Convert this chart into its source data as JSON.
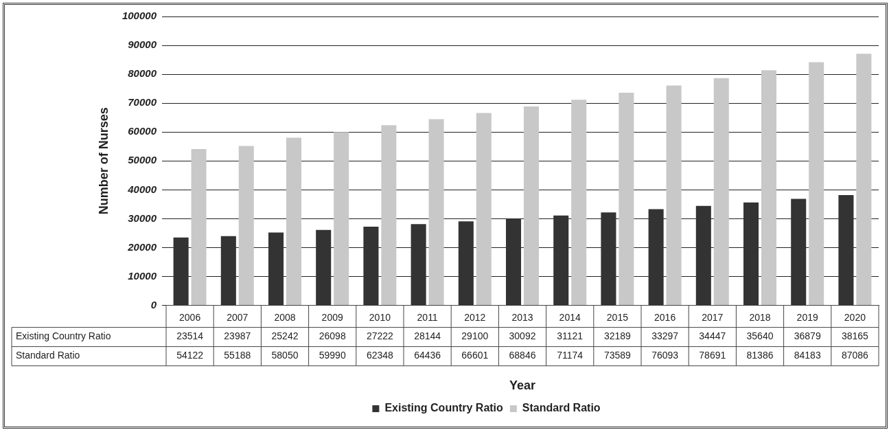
{
  "chart_data": {
    "type": "bar",
    "xlabel": "Year",
    "ylabel": "Number of Nurses",
    "categories": [
      "2006",
      "2007",
      "2008",
      "2009",
      "2010",
      "2011",
      "2012",
      "2013",
      "2014",
      "2015",
      "2016",
      "2017",
      "2018",
      "2019",
      "2020"
    ],
    "series": [
      {
        "name": "Existing Country Ratio",
        "color": "#333333",
        "values": [
          23514,
          23987,
          25242,
          26098,
          27222,
          28144,
          29100,
          30092,
          31121,
          32189,
          33297,
          34447,
          35640,
          36879,
          38165
        ]
      },
      {
        "name": "Standard Ratio",
        "color": "#c8c8c8",
        "values": [
          54122,
          55188,
          58050,
          59990,
          62348,
          64436,
          66601,
          68846,
          71174,
          73589,
          76093,
          78691,
          81386,
          84183,
          87086
        ]
      }
    ],
    "ylim": [
      0,
      100000
    ],
    "yticks": [
      0,
      10000,
      20000,
      30000,
      40000,
      50000,
      60000,
      70000,
      80000,
      90000,
      100000
    ],
    "grid": "y",
    "legend": "bottom",
    "data_labels": true
  }
}
